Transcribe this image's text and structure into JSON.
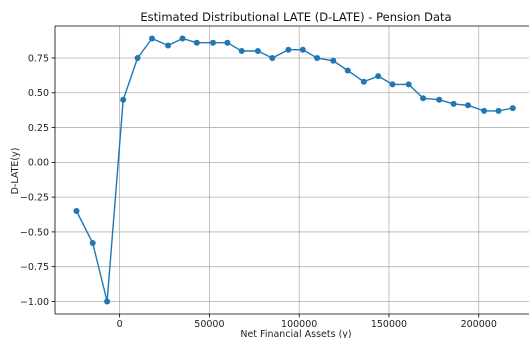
{
  "chart_data": {
    "type": "line",
    "title": "Estimated Distributional LATE (D-LATE) - Pension Data",
    "xlabel": "Net Financial Assets (y)",
    "ylabel": "D-LATE(y)",
    "xlim": [
      -36000,
      228000
    ],
    "ylim": [
      -1.09,
      0.98
    ],
    "xticks": [
      0,
      50000,
      100000,
      150000,
      200000
    ],
    "xtick_labels": [
      "0",
      "50000",
      "100000",
      "150000",
      "200000"
    ],
    "yticks": [
      -1.0,
      -0.75,
      -0.5,
      -0.25,
      0.0,
      0.25,
      0.5,
      0.75
    ],
    "ytick_labels": [
      "−1.00",
      "−0.75",
      "−0.50",
      "−0.25",
      "0.00",
      "0.25",
      "0.50",
      "0.75"
    ],
    "grid": true,
    "series": [
      {
        "color": "#1f77b4",
        "x": [
          -24000,
          -15000,
          -7000,
          2000,
          10000,
          18000,
          27000,
          35000,
          43000,
          52000,
          60000,
          68000,
          77000,
          85000,
          94000,
          102000,
          110000,
          119000,
          127000,
          136000,
          144000,
          152000,
          161000,
          169000,
          178000,
          186000,
          194000,
          203000,
          211000,
          219000
        ],
        "y": [
          -0.35,
          -0.58,
          -1.0,
          0.45,
          0.75,
          0.89,
          0.84,
          0.89,
          0.86,
          0.86,
          0.86,
          0.8,
          0.8,
          0.75,
          0.81,
          0.81,
          0.75,
          0.73,
          0.66,
          0.58,
          0.62,
          0.56,
          0.56,
          0.46,
          0.45,
          0.42,
          0.41,
          0.37,
          0.37,
          0.39
        ]
      }
    ]
  }
}
